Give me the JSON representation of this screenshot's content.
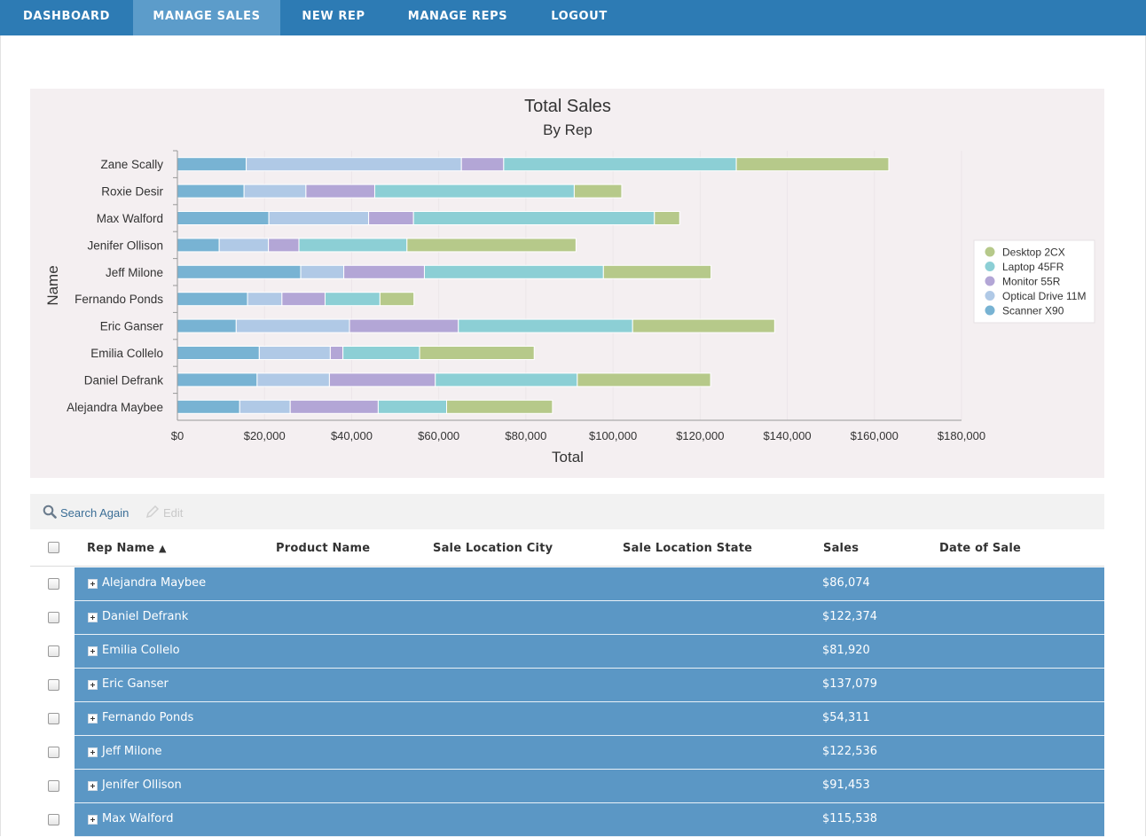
{
  "nav": {
    "items": [
      "DASHBOARD",
      "MANAGE SALES",
      "NEW REP",
      "MANAGE REPS",
      "LOGOUT"
    ],
    "active": "MANAGE SALES"
  },
  "colors": {
    "nav_bg": "#2d7bb4",
    "nav_active": "#5c9cca",
    "row_bg": "#5b97c5",
    "Scanner X90": "#78b3d3",
    "Optical Drive 11M": "#b0c9e6",
    "Monitor 55R": "#b3a6d6",
    "Laptop 45FR": "#8ccfd5",
    "Desktop 2CX": "#b6c98a"
  },
  "chart_data": {
    "type": "bar",
    "orientation": "horizontal",
    "stacked": true,
    "title": "Total Sales",
    "subtitle": "By Rep",
    "xlabel": "Total",
    "ylabel": "Name",
    "xlim": [
      0,
      180000
    ],
    "x_ticks": [
      "$0",
      "$20,000",
      "$40,000",
      "$60,000",
      "$80,000",
      "$100,000",
      "$120,000",
      "$140,000",
      "$160,000",
      "$180,000"
    ],
    "legend_position": "right",
    "categories": [
      "Zane Scally",
      "Roxie Desir",
      "Max Walford",
      "Jenifer Ollison",
      "Jeff Milone",
      "Fernando Ponds",
      "Eric Ganser",
      "Emilia Collelo",
      "Daniel Defrank",
      "Alejandra Maybee"
    ],
    "series": [
      {
        "name": "Scanner X90",
        "values": [
          15800,
          15300,
          21000,
          9600,
          28300,
          16100,
          13500,
          18800,
          18300,
          14300
        ]
      },
      {
        "name": "Optical Drive 11M",
        "values": [
          49400,
          14200,
          22900,
          11300,
          9900,
          7900,
          26000,
          16300,
          16600,
          11600
        ]
      },
      {
        "name": "Monitor 55R",
        "values": [
          9700,
          15800,
          10300,
          7000,
          18500,
          9900,
          25000,
          2900,
          24300,
          20200
        ]
      },
      {
        "name": "Laptop 45FR",
        "values": [
          53400,
          45800,
          55300,
          24800,
          41100,
          12600,
          40000,
          17600,
          32600,
          15700
        ]
      },
      {
        "name": "Desktop 2CX",
        "values": [
          35000,
          10900,
          5800,
          38800,
          24700,
          7800,
          32600,
          26300,
          30600,
          24300
        ]
      }
    ],
    "legend": [
      "Desktop 2CX",
      "Laptop 45FR",
      "Monitor 55R",
      "Optical Drive 11M",
      "Scanner X90"
    ]
  },
  "toolbar": {
    "search_label": "Search Again",
    "edit_label": "Edit"
  },
  "table": {
    "columns": [
      "Rep Name",
      "Product Name",
      "Sale Location City",
      "Sale Location State",
      "Sales",
      "Date of Sale"
    ],
    "sort_column": "Rep Name",
    "sort_direction": "ascending",
    "rows": [
      {
        "rep": "Alejandra Maybee",
        "sales": "$86,074"
      },
      {
        "rep": "Daniel Defrank",
        "sales": "$122,374"
      },
      {
        "rep": "Emilia Collelo",
        "sales": "$81,920"
      },
      {
        "rep": "Eric Ganser",
        "sales": "$137,079"
      },
      {
        "rep": "Fernando Ponds",
        "sales": "$54,311"
      },
      {
        "rep": "Jeff Milone",
        "sales": "$122,536"
      },
      {
        "rep": "Jenifer Ollison",
        "sales": "$91,453"
      },
      {
        "rep": "Max Walford",
        "sales": "$115,538"
      }
    ]
  }
}
